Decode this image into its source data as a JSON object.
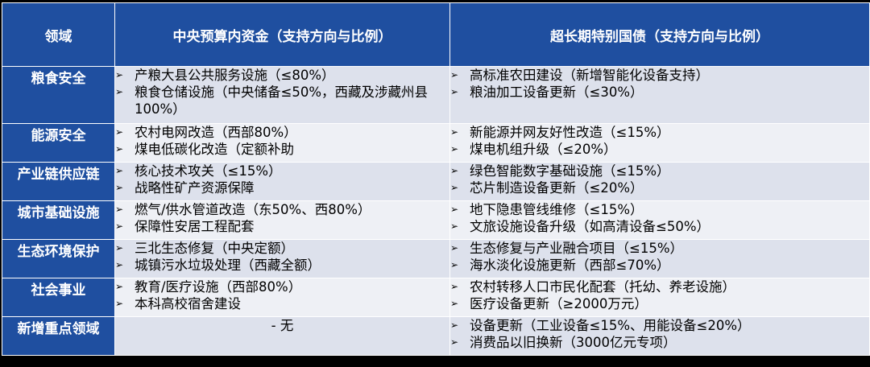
{
  "headers": {
    "domain": "领域",
    "central_budget": "中央预算内资金（支持方向与比例）",
    "special_bonds": "超长期特别国债（支持方向与比例）"
  },
  "bullet_icon": "arrow-bullet-icon",
  "colors": {
    "header_bg": "#1f4fa0",
    "row_band_a": "#dde1ec",
    "row_band_b": "#eef0f5"
  },
  "rows": [
    {
      "domain": "粮食安全",
      "central_budget": [
        "产粮大县公共服务设施（≤80%）",
        "粮食仓储设施（中央储备≤50%，西藏及涉藏州县100%）"
      ],
      "special_bonds": [
        "高标准农田建设（新增智能化设备支持）",
        "粮油加工设备更新（≤30%）"
      ]
    },
    {
      "domain": "能源安全",
      "central_budget": [
        "农村电网改造（西部80%）",
        "煤电低碳化改造（定额补助"
      ],
      "special_bonds": [
        "新能源并网友好性改造（≤15%）",
        "煤电机组升级（≤20%）"
      ]
    },
    {
      "domain": "产业链供应链",
      "central_budget": [
        "核心技术攻关（≤15%）",
        "战略性矿产资源保障"
      ],
      "special_bonds": [
        "绿色智能数字基础设施（≤15%）",
        "芯片制造设备更新（≤20%）"
      ]
    },
    {
      "domain": "城市基础设施",
      "central_budget": [
        "燃气/供水管道改造（东50%、西80%）",
        "保障性安居工程配套"
      ],
      "special_bonds": [
        "地下隐患管线维修（≤15%）",
        "文旅设施设备升级（如高清设备≤50%）"
      ]
    },
    {
      "domain": "生态环境保护",
      "central_budget": [
        "三北生态修复（中央定额）",
        "城镇污水垃圾处理（西藏全额）"
      ],
      "special_bonds": [
        "生态修复与产业融合项目（≤15%）",
        "海水淡化设施更新（西部≤70%）"
      ]
    },
    {
      "domain": "社会事业",
      "central_budget": [
        "教育/医疗设施（西部80%）",
        "本科高校宿舍建设"
      ],
      "special_bonds": [
        "农村转移人口市民化配套（托幼、养老设施）",
        "医疗设备更新（≥2000万元）"
      ]
    },
    {
      "domain": "新增重点领域",
      "central_budget_none": "- 无",
      "special_bonds": [
        "设备更新（工业设备≤15%、用能设备≤20%）",
        "消费品以旧换新（3000亿元专项）"
      ]
    }
  ]
}
